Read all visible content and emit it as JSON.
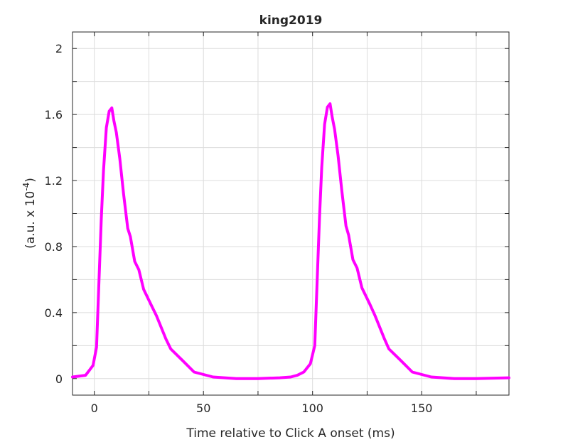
{
  "chart_data": {
    "type": "line",
    "title": "king2019",
    "xlabel": "Time relative to Click A onset (ms)",
    "ylabel": "(a.u. x 10",
    "ylabel_exponent": "-4",
    "ylabel_close": ")",
    "xlim": [
      -10,
      190
    ],
    "ylim": [
      -0.1,
      2.1
    ],
    "xticks": [
      0,
      50,
      100,
      150
    ],
    "yticks": [
      0,
      0.4,
      0.8,
      1.2,
      1.6,
      2
    ],
    "ytick_labels": [
      "0",
      "0.4",
      "0.8",
      "1.2",
      "1.6",
      "2"
    ],
    "grid": true,
    "line_color": "#ff00ff",
    "series": [
      {
        "x": [
          -10,
          -4,
          -0.6,
          1,
          2,
          3.2,
          4.2,
          5.5,
          6.8,
          8,
          9,
          10.1,
          11.7,
          13.4,
          15.3,
          16.5,
          18.5,
          20.4,
          22.6,
          26.3,
          28.5,
          32.8,
          35,
          40.4,
          45.7,
          54.4,
          65,
          75,
          85,
          90,
          93,
          96,
          99,
          101,
          102,
          103.2,
          104.2,
          105.5,
          106.8,
          108,
          109,
          110.1,
          111.7,
          113.4,
          115.3,
          116.5,
          118.5,
          120.4,
          122.6,
          126.3,
          128.5,
          132.8,
          135,
          140.4,
          145.7,
          154.4,
          165,
          175,
          190
        ],
        "y": [
          0.01,
          0.02,
          0.08,
          0.19,
          0.54,
          0.97,
          1.26,
          1.52,
          1.62,
          1.64,
          1.56,
          1.49,
          1.33,
          1.12,
          0.91,
          0.86,
          0.71,
          0.66,
          0.54,
          0.44,
          0.38,
          0.24,
          0.18,
          0.11,
          0.04,
          0.01,
          0,
          0,
          0.005,
          0.01,
          0.02,
          0.04,
          0.09,
          0.2,
          0.55,
          0.98,
          1.28,
          1.54,
          1.645,
          1.665,
          1.585,
          1.51,
          1.35,
          1.14,
          0.925,
          0.87,
          0.72,
          0.67,
          0.55,
          0.45,
          0.385,
          0.245,
          0.18,
          0.11,
          0.04,
          0.01,
          0,
          0,
          0.005
        ]
      }
    ]
  }
}
